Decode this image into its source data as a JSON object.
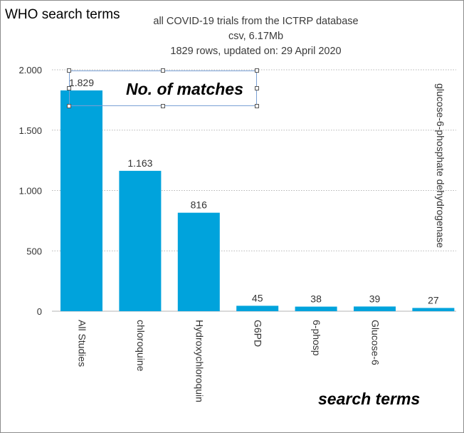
{
  "corner_label": "WHO search terms",
  "chart_data": {
    "type": "bar",
    "title": "all COVID-19 trials from the ICTRP database",
    "subtitle": [
      "csv, 6.17Mb",
      "1829 rows, updated on: 29 April 2020"
    ],
    "ylabel": "No. of matches",
    "xlabel": "search terms",
    "categories": [
      "All Studies",
      "chloroquine",
      "Hydroxychloroquin",
      "G6PD",
      "6-phosp",
      "Glucose-6",
      "glucose-6-phosphate dehydrogenase"
    ],
    "values": [
      1829,
      1163,
      816,
      45,
      38,
      39,
      27
    ],
    "value_labels": [
      "1.829",
      "1.163",
      "816",
      "45",
      "38",
      "39",
      "27"
    ],
    "yticks": [
      0,
      500,
      1000,
      1500,
      2000
    ],
    "ytick_labels": [
      "0",
      "500",
      "1.000",
      "1.500",
      "2.000"
    ],
    "ylim": [
      0,
      2000
    ],
    "grid": true,
    "bar_color": "#00a3dc"
  }
}
